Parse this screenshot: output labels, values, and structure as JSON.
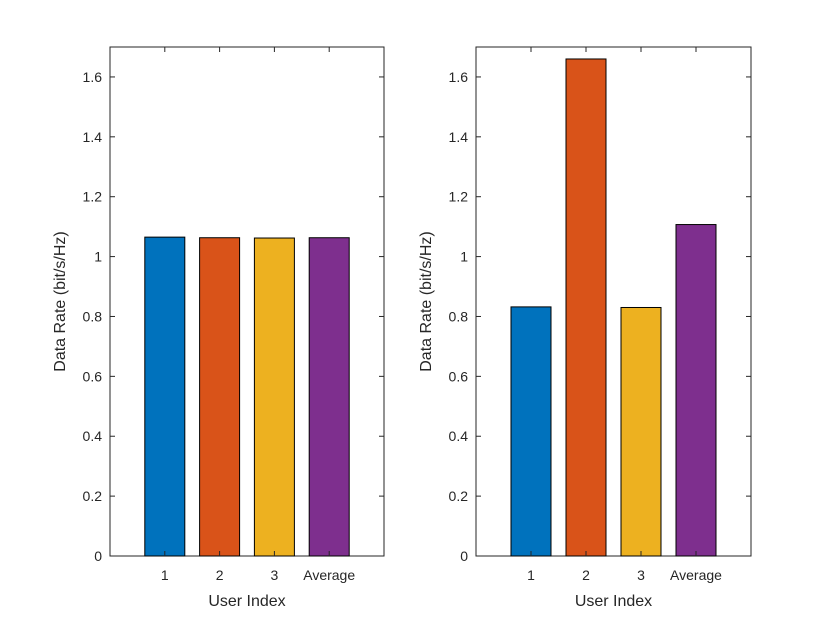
{
  "chart_data": [
    {
      "type": "bar",
      "categories": [
        "1",
        "2",
        "3",
        "Average"
      ],
      "values": [
        1.065,
        1.063,
        1.062,
        1.063
      ],
      "colors": [
        "#0072BD",
        "#D95319",
        "#EDB120",
        "#7E2F8E"
      ],
      "xlabel": "User Index",
      "ylabel": "Data Rate (bit/s/Hz)",
      "ylim": [
        0,
        1.7
      ],
      "yticks": [
        0,
        0.2,
        0.4,
        0.6,
        0.8,
        1,
        1.2,
        1.4,
        1.6
      ],
      "ytick_labels": [
        "0",
        "0.2",
        "0.4",
        "0.6",
        "0.8",
        "1",
        "1.2",
        "1.4",
        "1.6"
      ],
      "grid": false
    },
    {
      "type": "bar",
      "categories": [
        "1",
        "2",
        "3",
        "Average"
      ],
      "values": [
        0.832,
        1.66,
        0.83,
        1.107
      ],
      "colors": [
        "#0072BD",
        "#D95319",
        "#EDB120",
        "#7E2F8E"
      ],
      "xlabel": "User Index",
      "ylabel": "Data Rate (bit/s/Hz)",
      "ylim": [
        0,
        1.7
      ],
      "yticks": [
        0,
        0.2,
        0.4,
        0.6,
        0.8,
        1,
        1.2,
        1.4,
        1.6
      ],
      "ytick_labels": [
        "0",
        "0.2",
        "0.4",
        "0.6",
        "0.8",
        "1",
        "1.2",
        "1.4",
        "1.6"
      ],
      "grid": false
    }
  ]
}
